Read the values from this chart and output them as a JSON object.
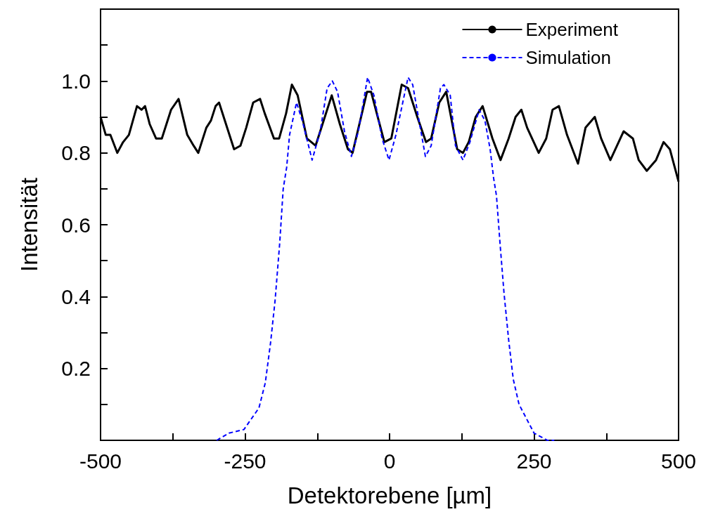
{
  "chart_data": {
    "type": "line",
    "xlabel": "Detektorebene [µm]",
    "ylabel": "Intensität",
    "xlim": [
      -500,
      500
    ],
    "xticks": [
      -500,
      {
        "value": -375,
        "label": null
      },
      -250,
      {
        "value": -125,
        "label": null
      },
      0,
      {
        "value": 125,
        "label": null
      },
      250,
      {
        "value": 375,
        "label": null
      },
      500
    ],
    "ylim": [
      0,
      1.2
    ],
    "yticks": [
      {
        "value": 0,
        "label": null
      },
      {
        "value": 0.1,
        "label": null
      },
      {
        "value": 0.2,
        "label": "0.2"
      },
      {
        "value": 0.3,
        "label": null
      },
      {
        "value": 0.4,
        "label": "0.4"
      },
      {
        "value": 0.5,
        "label": null
      },
      {
        "value": 0.6,
        "label": "0.6"
      },
      {
        "value": 0.7,
        "label": null
      },
      {
        "value": 0.8,
        "label": "0.8"
      },
      {
        "value": 0.9,
        "label": null
      },
      {
        "value": 1.0,
        "label": "1.0"
      },
      {
        "value": 1.1,
        "label": null
      },
      {
        "value": 1.2,
        "label": null
      }
    ],
    "grid": false,
    "legend": "top right",
    "marker": "none",
    "series": [
      {
        "name": "Experiment",
        "color": "#000000",
        "line_style": "solid",
        "x": [
          -500,
          -491,
          -483,
          -471,
          -461,
          -451,
          -437,
          -429,
          -423,
          -415,
          -404,
          -394,
          -378,
          -365,
          -350,
          -339,
          -331,
          -317,
          -309,
          -301,
          -295,
          -283,
          -269,
          -258,
          -248,
          -236,
          -224,
          -216,
          -200,
          -191,
          -179,
          -169,
          -159,
          -143,
          -128,
          -100,
          -86,
          -72,
          -64,
          -39,
          -32,
          -9,
          3,
          21,
          32,
          48,
          63,
          72,
          86,
          98,
          117,
          127,
          137,
          149,
          161,
          178,
          192,
          206,
          218,
          228,
          238,
          258,
          271,
          282,
          293,
          307,
          326,
          339,
          355,
          366,
          382,
          405,
          421,
          431,
          445,
          461,
          474,
          485,
          500
        ],
        "values": [
          0.9,
          0.85,
          0.85,
          0.8,
          0.83,
          0.85,
          0.93,
          0.92,
          0.93,
          0.88,
          0.84,
          0.84,
          0.92,
          0.95,
          0.85,
          0.82,
          0.8,
          0.87,
          0.89,
          0.93,
          0.94,
          0.88,
          0.81,
          0.82,
          0.87,
          0.94,
          0.95,
          0.91,
          0.84,
          0.84,
          0.91,
          0.99,
          0.96,
          0.84,
          0.82,
          0.96,
          0.88,
          0.81,
          0.8,
          0.97,
          0.97,
          0.83,
          0.84,
          0.99,
          0.98,
          0.9,
          0.83,
          0.84,
          0.94,
          0.97,
          0.81,
          0.8,
          0.83,
          0.9,
          0.93,
          0.84,
          0.78,
          0.84,
          0.9,
          0.92,
          0.87,
          0.8,
          0.84,
          0.92,
          0.93,
          0.85,
          0.77,
          0.87,
          0.9,
          0.84,
          0.78,
          0.86,
          0.84,
          0.78,
          0.75,
          0.78,
          0.83,
          0.81,
          0.72
        ]
      },
      {
        "name": "Simulation",
        "color": "#0000ff",
        "line_style": "dashed",
        "x": [
          -299,
          -278,
          -252,
          -226,
          -215,
          -206,
          -198,
          -190,
          -184,
          -178,
          -173,
          -161,
          -151,
          -134,
          -120,
          -108,
          -99,
          -90,
          -78,
          -66,
          -54,
          -38,
          -27,
          -13,
          -1,
          11,
          32,
          40,
          52,
          62,
          72,
          88,
          94,
          105,
          114,
          127,
          139,
          155,
          165,
          174,
          180,
          185,
          191,
          198,
          206,
          214,
          224,
          250,
          273,
          285
        ],
        "values": [
          0,
          0.02,
          0.03,
          0.09,
          0.16,
          0.27,
          0.39,
          0.55,
          0.7,
          0.76,
          0.85,
          0.94,
          0.89,
          0.78,
          0.86,
          0.98,
          1.0,
          0.97,
          0.86,
          0.79,
          0.86,
          1.01,
          0.96,
          0.84,
          0.78,
          0.85,
          1.01,
          0.99,
          0.88,
          0.79,
          0.82,
          0.98,
          0.99,
          0.96,
          0.82,
          0.78,
          0.83,
          0.92,
          0.89,
          0.81,
          0.73,
          0.68,
          0.55,
          0.41,
          0.28,
          0.17,
          0.1,
          0.02,
          0,
          0
        ]
      }
    ]
  }
}
